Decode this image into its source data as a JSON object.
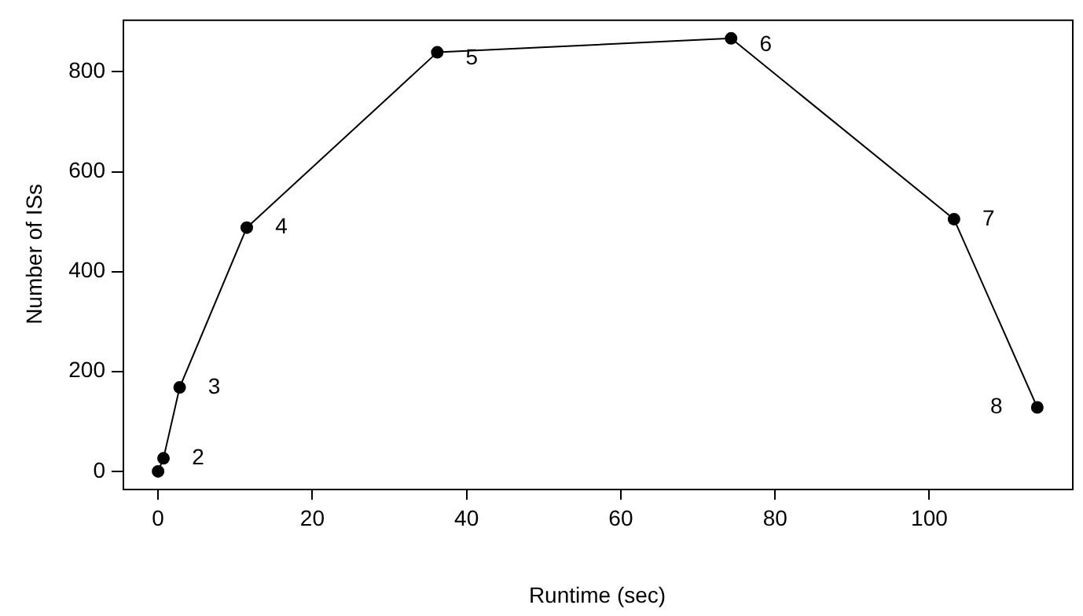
{
  "chart_data": {
    "type": "line",
    "xlabel": "Runtime (sec)",
    "ylabel": "Number of ISs",
    "x": [
      0,
      0.7,
      2.8,
      11.5,
      36.2,
      74.3,
      103.2,
      114.0
    ],
    "series": [
      {
        "color": "#000000",
        "values": [
          0,
          26,
          168,
          488,
          839,
          867,
          505,
          128
        ]
      }
    ],
    "xlim": [
      -4.6,
      118.5
    ],
    "xticks": [
      0,
      20,
      40,
      60,
      80,
      100
    ],
    "ylim": [
      -34.8,
      904.8
    ],
    "yticks": [
      0,
      200,
      400,
      600,
      800
    ],
    "grid": false,
    "legend": false,
    "marker": "circle",
    "line_style": "solid",
    "annotations": [
      {
        "text": "2",
        "x": 0.7,
        "y": 26
      },
      {
        "text": "3",
        "x": 2.8,
        "y": 168
      },
      {
        "text": "4",
        "x": 11.5,
        "y": 488
      },
      {
        "text": "5",
        "x": 36.2,
        "y": 839
      },
      {
        "text": "6",
        "x": 74.3,
        "y": 867
      },
      {
        "text": "7",
        "x": 103.2,
        "y": 505
      },
      {
        "text": "8",
        "x": 114.0,
        "y": 128
      }
    ]
  }
}
